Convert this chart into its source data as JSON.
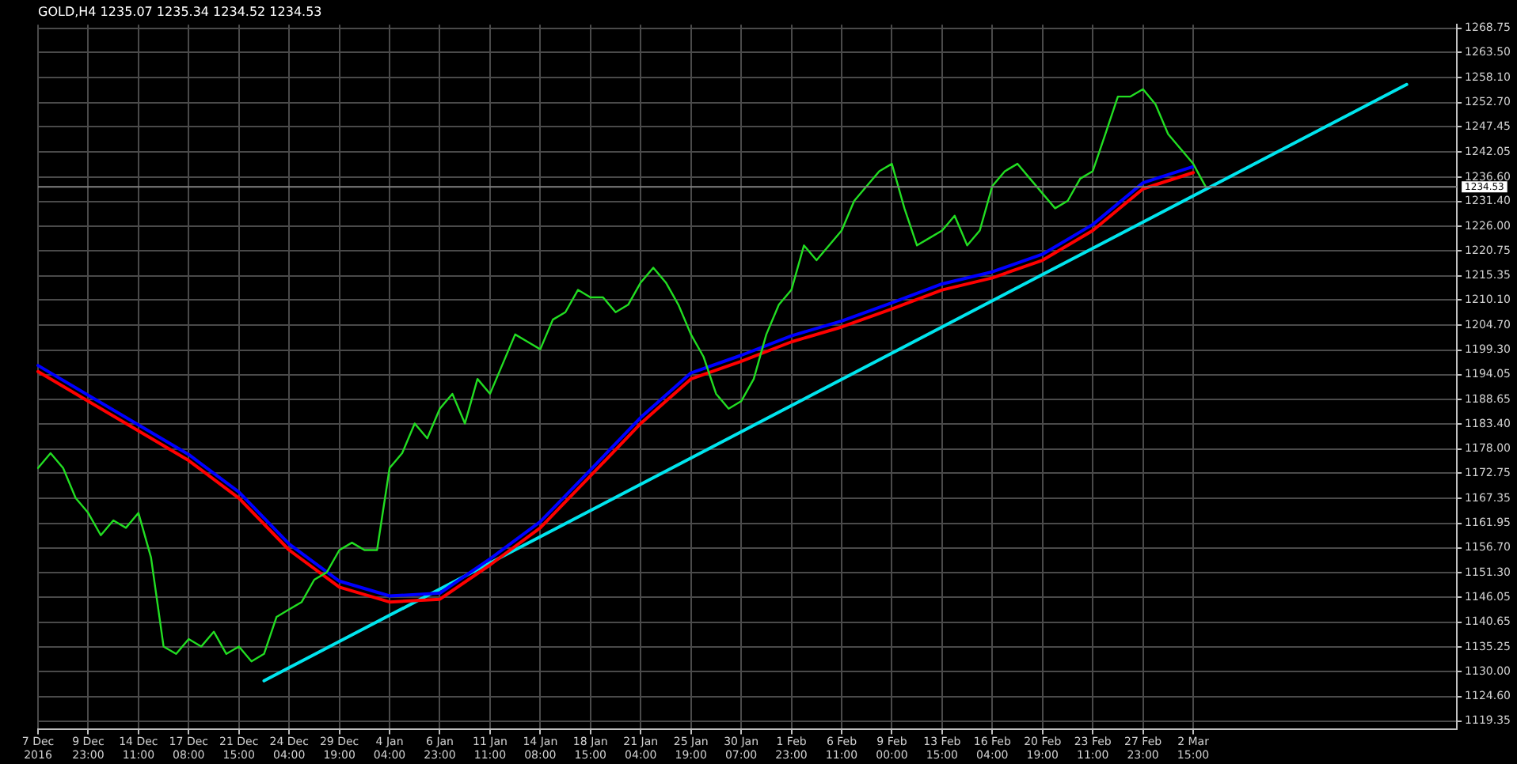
{
  "chart_data": {
    "type": "line",
    "title": "GOLD,H4 1235.07 1235.34 1234.52 1234.53",
    "categories": [
      "7 Dec 2016",
      null,
      null,
      null,
      "9 Dec 23:00",
      null,
      null,
      null,
      "14 Dec 11:00",
      null,
      null,
      null,
      "17 Dec 08:00",
      null,
      null,
      null,
      "21 Dec 15:00",
      null,
      null,
      null,
      "24 Dec 04:00",
      null,
      null,
      null,
      "29 Dec 19:00",
      null,
      null,
      null,
      "4 Jan 04:00",
      null,
      null,
      null,
      "6 Jan 23:00",
      null,
      null,
      null,
      "11 Jan 11:00",
      null,
      null,
      null,
      "14 Jan 08:00",
      null,
      null,
      null,
      "18 Jan 15:00",
      null,
      null,
      null,
      "21 Jan 04:00",
      null,
      null,
      null,
      "25 Jan 19:00",
      null,
      null,
      null,
      "30 Jan 07:00",
      null,
      null,
      null,
      "1 Feb 23:00",
      null,
      null,
      null,
      "6 Feb 11:00",
      null,
      null,
      null,
      "9 Feb 00:00",
      null,
      null,
      null,
      "13 Feb 15:00",
      null,
      null,
      null,
      "16 Feb 04:00",
      null,
      null,
      null,
      "20 Feb 19:00",
      null,
      null,
      null,
      "23 Feb 11:00",
      null,
      null,
      null,
      "27 Feb 23:00",
      null,
      null,
      null,
      "2 Mar 15:00",
      null,
      null,
      null,
      null,
      null,
      null,
      null,
      null,
      null,
      null,
      null,
      null,
      null,
      null,
      null,
      null,
      null,
      null,
      null,
      null,
      null
    ],
    "series": [
      {
        "color": "#22dd22",
        "values": [
          1173.9,
          1177.1,
          1173.9,
          1167.4,
          1164.2,
          1159.4,
          1162.6,
          1161.0,
          1164.2,
          1154.6,
          1135.4,
          1133.8,
          1137.0,
          1135.4,
          1138.6,
          1133.8,
          1135.4,
          1132.2,
          1133.8,
          1141.8,
          1143.4,
          1145.0,
          1149.8,
          1151.4,
          1156.2,
          1157.8,
          1156.2,
          1156.2,
          1173.9,
          1177.1,
          1183.5,
          1180.3,
          1186.7,
          1189.9,
          1183.5,
          1193.1,
          1189.9,
          1196.3,
          1202.7,
          1201.1,
          1199.5,
          1205.9,
          1207.5,
          1212.3,
          1210.7,
          1210.7,
          1207.5,
          1209.1,
          1213.9,
          1217.1,
          1213.9,
          1209.1,
          1202.7,
          1197.9,
          1189.9,
          1186.7,
          1188.3,
          1193.1,
          1202.7,
          1209.1,
          1212.3,
          1221.9,
          1218.7,
          1221.9,
          1225.1,
          1231.5,
          1234.7,
          1237.9,
          1239.5,
          1229.9,
          1221.9,
          1223.5,
          1225.1,
          1228.3,
          1221.9,
          1225.1,
          1234.7,
          1237.9,
          1239.5,
          1236.3,
          1233.1,
          1229.9,
          1231.5,
          1236.3,
          1237.9,
          1245.9,
          1254.0,
          1254.0,
          1255.6,
          1252.3,
          1245.9,
          1242.7,
          1239.5,
          1234.5,
          null,
          null,
          null,
          null,
          null,
          null,
          null,
          null,
          null,
          null,
          null,
          null,
          null,
          null,
          null,
          null,
          null,
          null,
          null,
          null
        ]
      },
      {
        "color": "#0000ff",
        "values": [
          1196.0,
          null,
          null,
          null,
          1189.6,
          null,
          null,
          null,
          1183.2,
          null,
          null,
          null,
          1176.8,
          null,
          null,
          null,
          1168.7,
          null,
          null,
          null,
          1157.5,
          null,
          null,
          null,
          1149.5,
          null,
          null,
          null,
          1146.3,
          null,
          null,
          null,
          1146.9,
          null,
          null,
          null,
          1154.3,
          null,
          null,
          null,
          1162.3,
          null,
          null,
          null,
          1173.5,
          null,
          null,
          null,
          1184.8,
          null,
          null,
          null,
          1194.4,
          null,
          null,
          null,
          1198.2,
          null,
          null,
          null,
          1202.4,
          null,
          null,
          null,
          1205.6,
          null,
          null,
          null,
          1209.5,
          null,
          null,
          null,
          1213.6,
          null,
          null,
          null,
          1216.2,
          null,
          null,
          null,
          1220.0,
          null,
          null,
          null,
          1226.4,
          null,
          null,
          null,
          1235.4,
          null,
          null,
          null,
          1238.9,
          null,
          null,
          null,
          null,
          null,
          null,
          null,
          null,
          null,
          null,
          null,
          null,
          null,
          null,
          null,
          null,
          null,
          null,
          null,
          null,
          null
        ]
      },
      {
        "color": "#ff0000",
        "values": [
          1194.7,
          null,
          null,
          null,
          1188.3,
          null,
          null,
          null,
          1181.9,
          null,
          null,
          null,
          1175.5,
          null,
          null,
          null,
          1167.4,
          null,
          null,
          null,
          1156.2,
          null,
          null,
          null,
          1148.2,
          null,
          null,
          null,
          1145.0,
          null,
          null,
          null,
          1145.6,
          null,
          null,
          null,
          1153.0,
          null,
          null,
          null,
          1161.0,
          null,
          null,
          null,
          1172.2,
          null,
          null,
          null,
          1183.5,
          null,
          null,
          null,
          1193.1,
          null,
          null,
          null,
          1196.9,
          null,
          null,
          null,
          1201.1,
          null,
          null,
          null,
          1204.3,
          null,
          null,
          null,
          1208.2,
          null,
          null,
          null,
          1212.3,
          null,
          null,
          null,
          1214.9,
          null,
          null,
          null,
          1218.7,
          null,
          null,
          null,
          1225.1,
          null,
          null,
          null,
          1234.1,
          null,
          null,
          null,
          1237.6,
          null,
          null,
          null,
          null,
          null,
          null,
          null,
          null,
          null,
          null,
          null,
          null,
          null,
          null,
          null,
          null,
          null,
          null,
          null,
          null,
          null
        ]
      },
      {
        "color": "#00e5ee",
        "values": [
          null,
          null,
          null,
          null,
          null,
          null,
          null,
          null,
          null,
          null,
          null,
          null,
          null,
          null,
          null,
          null,
          null,
          null,
          1128.0,
          null,
          null,
          null,
          null,
          null,
          null,
          null,
          null,
          null,
          null,
          null,
          null,
          null,
          null,
          null,
          null,
          null,
          null,
          null,
          null,
          null,
          null,
          null,
          null,
          null,
          null,
          null,
          null,
          null,
          null,
          null,
          null,
          null,
          null,
          null,
          null,
          null,
          null,
          null,
          null,
          null,
          null,
          null,
          null,
          null,
          null,
          null,
          null,
          null,
          null,
          null,
          null,
          null,
          null,
          null,
          null,
          null,
          null,
          null,
          null,
          null,
          null,
          null,
          null,
          null,
          null,
          null,
          null,
          null,
          null,
          null,
          null,
          null,
          null,
          null,
          null,
          null,
          null,
          null,
          null,
          null,
          null,
          null,
          null,
          null,
          null,
          null,
          null,
          null,
          null,
          1256.6,
          null,
          null,
          null,
          null
        ]
      }
    ],
    "ylim": [
      1117.5,
      1269.5
    ],
    "yticks": [
      {
        "value": 1119.35,
        "label": "1119.35"
      },
      {
        "value": 1124.6,
        "label": "1124.60"
      },
      {
        "value": 1130.0,
        "label": "1130.00"
      },
      {
        "value": 1135.25,
        "label": "1135.25"
      },
      {
        "value": 1140.65,
        "label": "1140.65"
      },
      {
        "value": 1146.05,
        "label": "1146.05"
      },
      {
        "value": 1151.3,
        "label": "1151.30"
      },
      {
        "value": 1156.7,
        "label": "1156.70"
      },
      {
        "value": 1161.95,
        "label": "1161.95"
      },
      {
        "value": 1167.35,
        "label": "1167.35"
      },
      {
        "value": 1172.75,
        "label": "1172.75"
      },
      {
        "value": 1178.0,
        "label": "1178.00"
      },
      {
        "value": 1183.4,
        "label": "1183.40"
      },
      {
        "value": 1188.65,
        "label": "1188.65"
      },
      {
        "value": 1194.05,
        "label": "1194.05"
      },
      {
        "value": 1199.3,
        "label": "1199.30"
      },
      {
        "value": 1204.7,
        "label": "1204.70"
      },
      {
        "value": 1210.1,
        "label": "1210.10"
      },
      {
        "value": 1215.35,
        "label": "1215.35"
      },
      {
        "value": 1220.75,
        "label": "1220.75"
      },
      {
        "value": 1226.0,
        "label": "1226.00"
      },
      {
        "value": 1231.4,
        "label": "1231.40"
      },
      {
        "value": 1236.6,
        "label": "1236.60"
      },
      {
        "value": 1242.05,
        "label": "1242.05"
      },
      {
        "value": 1247.45,
        "label": "1247.45"
      },
      {
        "value": 1252.7,
        "label": "1252.70"
      },
      {
        "value": 1258.1,
        "label": "1258.10"
      },
      {
        "value": 1263.5,
        "label": "1263.50"
      },
      {
        "value": 1268.75,
        "label": "1268.75"
      }
    ],
    "ref_lines": [
      {
        "axis": "y",
        "value": 1234.53,
        "label": "1234.53",
        "color": "#808080"
      }
    ],
    "grid": true,
    "legend": false,
    "marker": "none",
    "line_style": "solid"
  }
}
